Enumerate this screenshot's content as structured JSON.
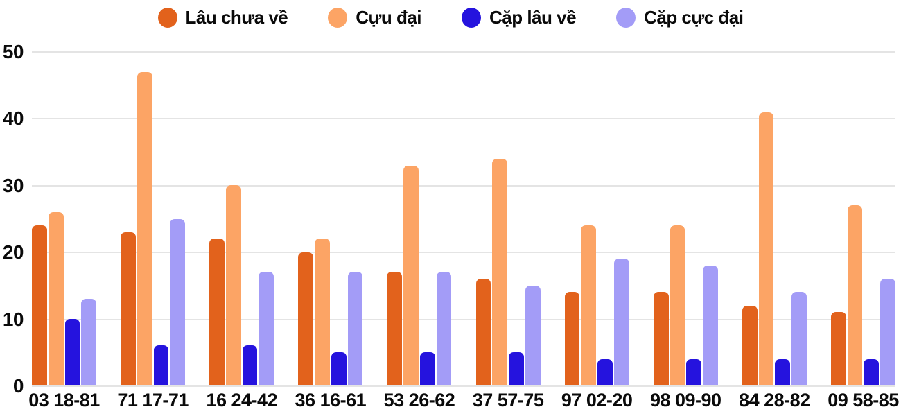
{
  "chart_data": {
    "type": "bar",
    "title": "",
    "categories": [
      "03 18-81",
      "71 17-71",
      "16 24-42",
      "36 16-61",
      "53 26-62",
      "37 57-75",
      "97 02-20",
      "98 09-90",
      "84 28-82",
      "09 58-85"
    ],
    "series": [
      {
        "name": "Lâu chưa về",
        "color": "#E2621C",
        "values": [
          24,
          23,
          22,
          20,
          17,
          16,
          14,
          14,
          12,
          11
        ]
      },
      {
        "name": "Cựu đại",
        "color": "#FCA465",
        "values": [
          26,
          47,
          30,
          22,
          33,
          34,
          24,
          24,
          41,
          27
        ]
      },
      {
        "name": "Cặp lâu về",
        "color": "#2513DE",
        "values": [
          10,
          6,
          6,
          5,
          5,
          5,
          4,
          4,
          4,
          4
        ]
      },
      {
        "name": "Cặp cực đại",
        "color": "#A39CF7",
        "values": [
          13,
          25,
          17,
          17,
          17,
          15,
          19,
          18,
          14,
          16
        ]
      }
    ],
    "xlabel": "",
    "ylabel": "",
    "ylim": [
      0,
      50
    ],
    "yticks": [
      0,
      10,
      20,
      30,
      40,
      50
    ],
    "grid": "horizontal",
    "legend_position": "top",
    "colors": {
      "gridline": "#E4E4E4",
      "text": "#0A0A0A",
      "background": "#FFFFFF"
    }
  }
}
